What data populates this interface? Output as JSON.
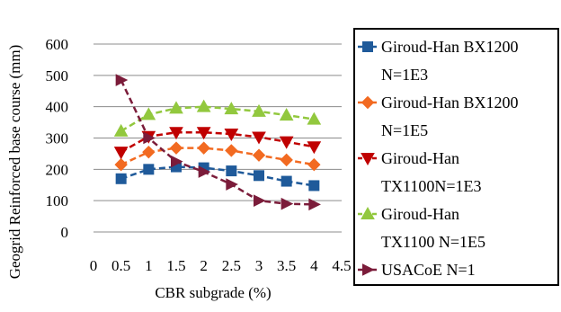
{
  "chart_data": {
    "type": "line",
    "title": "",
    "xlabel": "CBR subgrade (%)",
    "ylabel": "Geogrid Reinforced base course (mm)",
    "xlim": [
      0,
      4.5
    ],
    "ylim": [
      0,
      600
    ],
    "x_ticks": [
      "0",
      "0.5",
      "1",
      "1.5",
      "2",
      "2.5",
      "3",
      "3.5",
      "4",
      "4.5"
    ],
    "y_ticks": [
      "0",
      "100",
      "200",
      "300",
      "400",
      "500",
      "600"
    ],
    "grid": "horizontal",
    "legend_position": "right",
    "x": [
      0.5,
      1,
      1.5,
      2,
      2.5,
      3,
      3.5,
      4
    ],
    "series": [
      {
        "name": "Giroud-Han BX1200 N=1E3",
        "legend_lines": [
          "Giroud-Han BX1200",
          "N=1E3"
        ],
        "color": "#1F5A9A",
        "marker": "square",
        "values": [
          170,
          200,
          208,
          205,
          195,
          180,
          162,
          148
        ]
      },
      {
        "name": "Giroud-Han BX1200 N=1E5",
        "legend_lines": [
          "Giroud-Han BX1200",
          "N=1E5"
        ],
        "color": "#F26A21",
        "marker": "diamond",
        "values": [
          215,
          255,
          268,
          268,
          260,
          245,
          230,
          215
        ]
      },
      {
        "name": "Giroud-Han TX1100N=1E3",
        "legend_lines": [
          "Giroud-Han",
          "TX1100N=1E3"
        ],
        "color": "#C00000",
        "marker": "triangle-down",
        "values": [
          255,
          305,
          318,
          318,
          313,
          303,
          288,
          272
        ]
      },
      {
        "name": "Giroud-Han TX1100 N=1E5",
        "legend_lines": [
          "Giroud-Han",
          "TX1100 N=1E5"
        ],
        "color": "#92C83E",
        "marker": "triangle-up",
        "values": [
          322,
          375,
          395,
          400,
          393,
          385,
          373,
          360
        ]
      },
      {
        "name": "USACoE N=1",
        "legend_lines": [
          "USACoE N=1"
        ],
        "color": "#7B1C3A",
        "marker": "arrow-right",
        "values": [
          485,
          300,
          225,
          192,
          152,
          100,
          90,
          88
        ]
      }
    ]
  }
}
